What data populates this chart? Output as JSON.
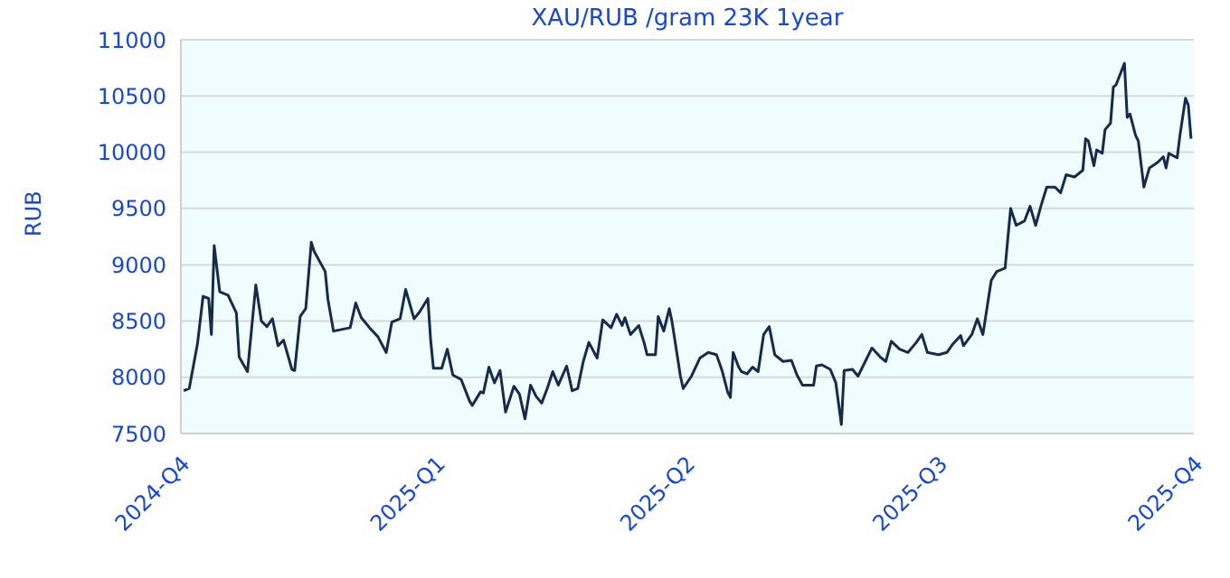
{
  "chart_data": {
    "type": "line",
    "title": "XAU/RUB /gram 23K 1year",
    "ylabel": "RUB",
    "xlim": [
      "2024-10-01",
      "2025-10-01"
    ],
    "xticks": [
      {
        "value": "2024-10-01",
        "label": "2024-Q4"
      },
      {
        "value": "2025-01-01",
        "label": "2025-Q1"
      },
      {
        "value": "2025-04-01",
        "label": "2025-Q2"
      },
      {
        "value": "2025-07-01",
        "label": "2025-Q3"
      },
      {
        "value": "2025-10-01",
        "label": "2025-Q4"
      }
    ],
    "ylim": [
      7500,
      11000
    ],
    "yticks": [
      7500,
      8000,
      8500,
      9000,
      9500,
      10000,
      10500,
      11000
    ],
    "grid": "y",
    "legend": false,
    "marker": "none",
    "line_style": "solid",
    "x": [
      "2024-10-02",
      "2024-10-04",
      "2024-10-07",
      "2024-10-09",
      "2024-10-11",
      "2024-10-12",
      "2024-10-13",
      "2024-10-15",
      "2024-10-18",
      "2024-10-21",
      "2024-10-22",
      "2024-10-25",
      "2024-10-28",
      "2024-10-30",
      "2024-11-01",
      "2024-11-03",
      "2024-11-05",
      "2024-11-07",
      "2024-11-10",
      "2024-11-11",
      "2024-11-13",
      "2024-11-15",
      "2024-11-17",
      "2024-11-18",
      "2024-11-22",
      "2024-11-23",
      "2024-11-25",
      "2024-12-01",
      "2024-12-03",
      "2024-12-05",
      "2024-12-08",
      "2024-12-11",
      "2024-12-14",
      "2024-12-16",
      "2024-12-19",
      "2024-12-21",
      "2024-12-24",
      "2024-12-26",
      "2024-12-29",
      "2024-12-30",
      "2024-12-31",
      "2025-01-03",
      "2025-01-05",
      "2025-01-07",
      "2025-01-10",
      "2025-01-13",
      "2025-01-14",
      "2025-01-17",
      "2025-01-18",
      "2025-01-20",
      "2025-01-22",
      "2025-01-24",
      "2025-01-26",
      "2025-01-29",
      "2025-01-31",
      "2025-02-02",
      "2025-02-04",
      "2025-02-06",
      "2025-02-08",
      "2025-02-10",
      "2025-02-12",
      "2025-02-14",
      "2025-02-17",
      "2025-02-19",
      "2025-02-21",
      "2025-02-23",
      "2025-02-25",
      "2025-02-28",
      "2025-03-02",
      "2025-03-05",
      "2025-03-07",
      "2025-03-09",
      "2025-03-10",
      "2025-03-12",
      "2025-03-15",
      "2025-03-17",
      "2025-03-18",
      "2025-03-21",
      "2025-03-22",
      "2025-03-24",
      "2025-03-26",
      "2025-03-27",
      "2025-03-30",
      "2025-03-31",
      "2025-04-03",
      "2025-04-06",
      "2025-04-09",
      "2025-04-12",
      "2025-04-14",
      "2025-04-16",
      "2025-04-17",
      "2025-04-18",
      "2025-04-20",
      "2025-04-21",
      "2025-04-23",
      "2025-04-25",
      "2025-04-27",
      "2025-04-29",
      "2025-05-01",
      "2025-05-03",
      "2025-05-06",
      "2025-05-09",
      "2025-05-11",
      "2025-05-13",
      "2025-05-17",
      "2025-05-18",
      "2025-05-20",
      "2025-05-23",
      "2025-05-25",
      "2025-05-27",
      "2025-05-28",
      "2025-05-31",
      "2025-06-02",
      "2025-06-04",
      "2025-06-07",
      "2025-06-10",
      "2025-06-12",
      "2025-06-14",
      "2025-06-17",
      "2025-06-20",
      "2025-06-23",
      "2025-06-25",
      "2025-06-27",
      "2025-07-01",
      "2025-07-04",
      "2025-07-06",
      "2025-07-09",
      "2025-07-10",
      "2025-07-13",
      "2025-07-15",
      "2025-07-17",
      "2025-07-19",
      "2025-07-20",
      "2025-07-22",
      "2025-07-25",
      "2025-07-26",
      "2025-07-27",
      "2025-07-29",
      "2025-08-01",
      "2025-08-03",
      "2025-08-05",
      "2025-08-07",
      "2025-08-09",
      "2025-08-12",
      "2025-08-14",
      "2025-08-16",
      "2025-08-19",
      "2025-08-22",
      "2025-08-23",
      "2025-08-24",
      "2025-08-26",
      "2025-08-27",
      "2025-08-29",
      "2025-08-30",
      "2025-09-01",
      "2025-09-02",
      "2025-09-03",
      "2025-09-06",
      "2025-09-07",
      "2025-09-08",
      "2025-09-10",
      "2025-09-11",
      "2025-09-13",
      "2025-09-15",
      "2025-09-18",
      "2025-09-20",
      "2025-09-21",
      "2025-09-22",
      "2025-09-25",
      "2025-09-26",
      "2025-09-28",
      "2025-09-29",
      "2025-09-30"
    ],
    "series": [
      {
        "color": "#162a4c",
        "values": [
          7880,
          7900,
          8300,
          8720,
          8700,
          8380,
          9170,
          8760,
          8730,
          8570,
          8180,
          8050,
          8820,
          8500,
          8450,
          8520,
          8280,
          8330,
          8070,
          8060,
          8540,
          8610,
          9200,
          9120,
          8940,
          8690,
          8410,
          8440,
          8660,
          8530,
          8440,
          8360,
          8220,
          8490,
          8520,
          8780,
          8520,
          8580,
          8700,
          8330,
          8080,
          8080,
          8250,
          8020,
          7980,
          7790,
          7750,
          7870,
          7860,
          8090,
          7950,
          8060,
          7690,
          7920,
          7850,
          7630,
          7930,
          7830,
          7770,
          7900,
          8050,
          7930,
          8100,
          7880,
          7900,
          8140,
          8310,
          8170,
          8510,
          8440,
          8560,
          8460,
          8530,
          8380,
          8460,
          8300,
          8200,
          8200,
          8540,
          8410,
          8610,
          8490,
          8010,
          7900,
          8010,
          8170,
          8220,
          8200,
          8060,
          7870,
          7820,
          8220,
          8090,
          8050,
          8030,
          8090,
          8050,
          8380,
          8450,
          8200,
          8140,
          8150,
          8020,
          7930,
          7930,
          8100,
          8110,
          8070,
          7950,
          7580,
          8060,
          8070,
          8010,
          8110,
          8260,
          8180,
          8140,
          8320,
          8250,
          8220,
          8310,
          8380,
          8220,
          8200,
          8220,
          8290,
          8370,
          8280,
          8380,
          8520,
          8380,
          8700,
          8860,
          8940,
          8970,
          9240,
          9500,
          9350,
          9390,
          9520,
          9350,
          9530,
          9690,
          9690,
          9640,
          9800,
          9780,
          9840,
          10120,
          10100,
          9880,
          10020,
          9990,
          10200,
          10260,
          10580,
          10600,
          10790,
          10310,
          10340,
          10150,
          10100,
          9690,
          9860,
          9910,
          9960,
          9860,
          9990,
          9950,
          10150,
          10480,
          10420,
          10120
        ]
      }
    ]
  }
}
